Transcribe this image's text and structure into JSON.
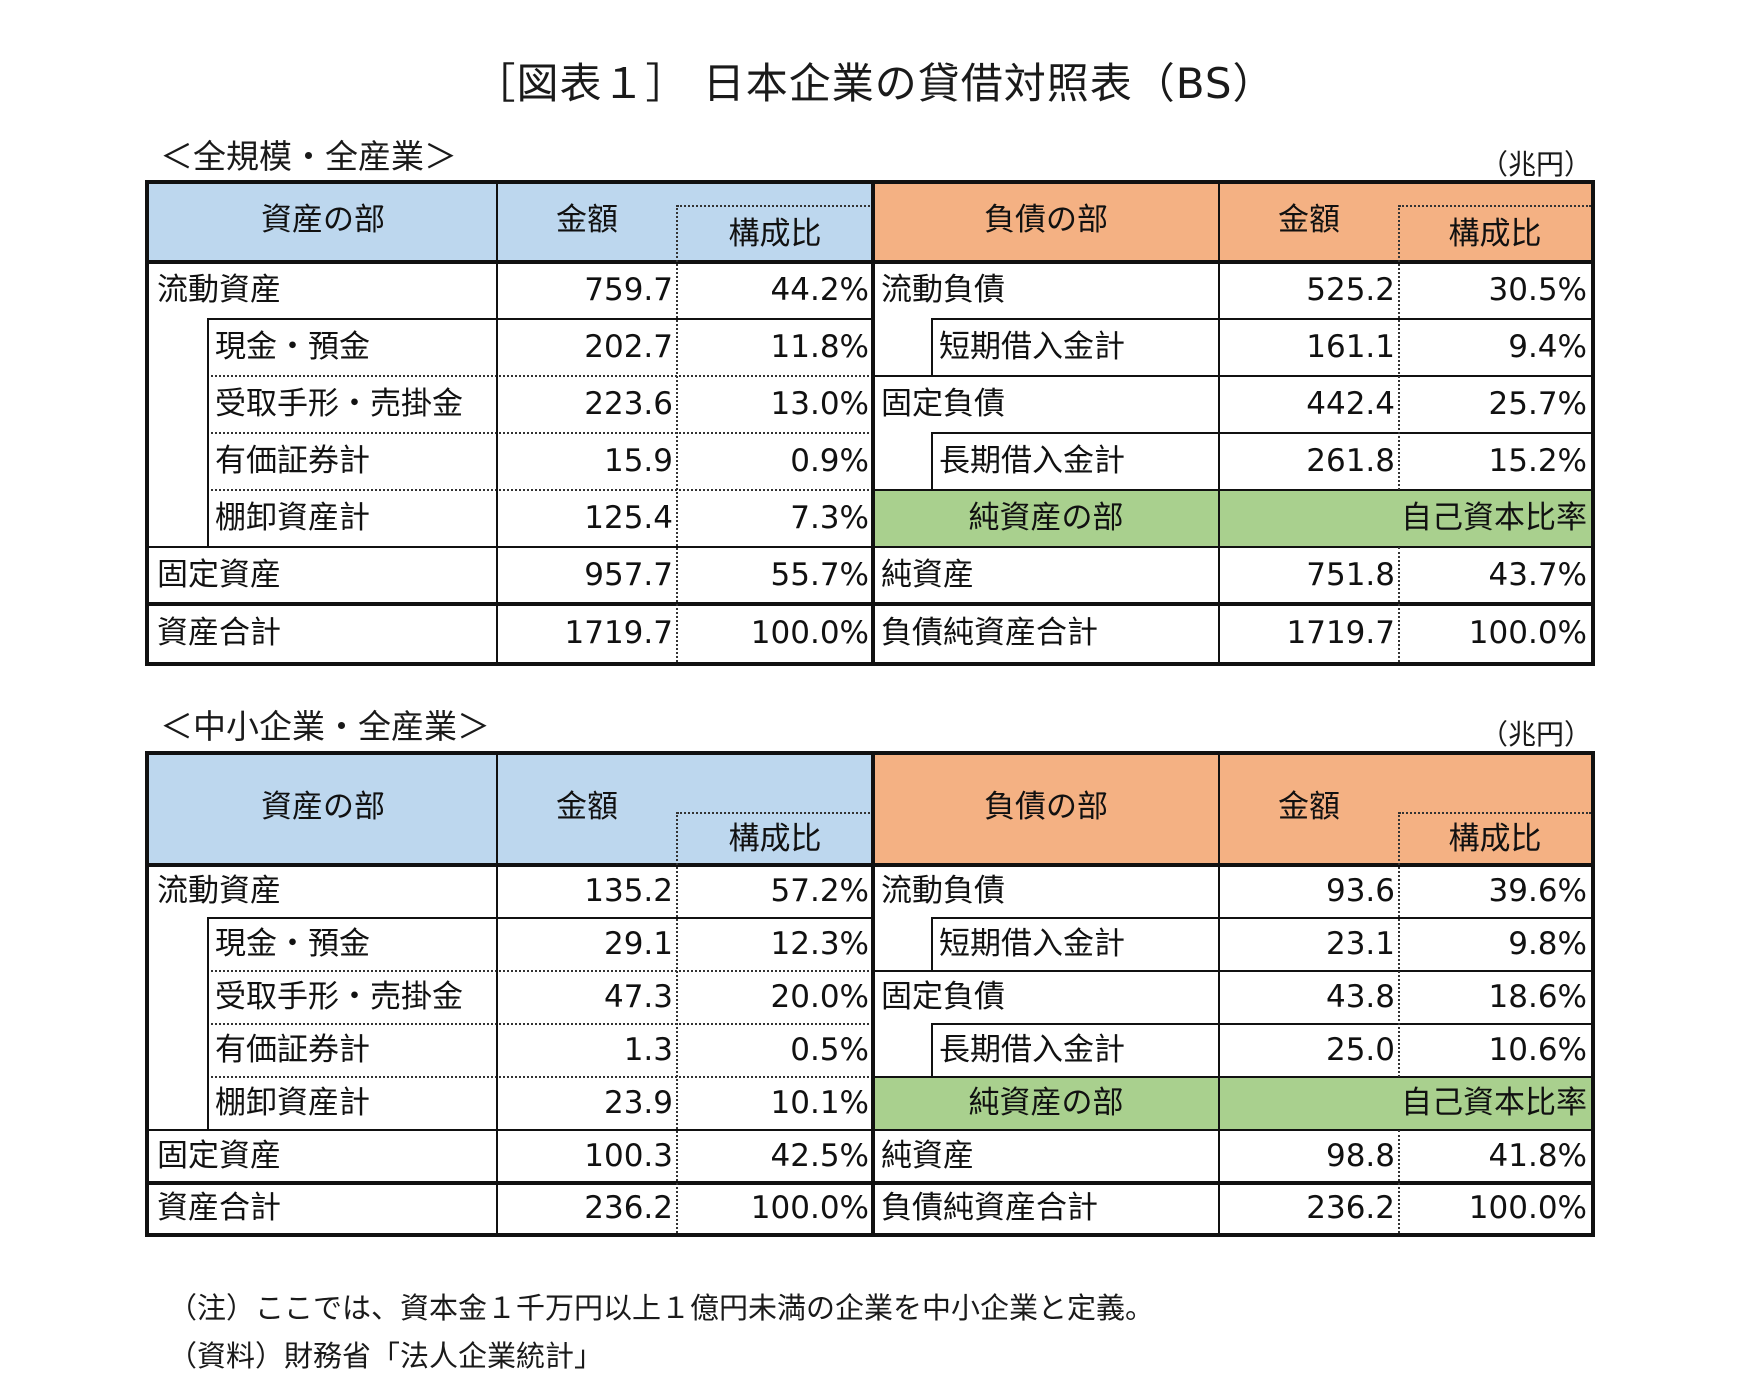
{
  "title": "［図表１］ 日本企業の貸借対照表（BS）",
  "unit": "（兆円）",
  "tables": [
    {
      "section_label": "＜全規模・全産業＞",
      "headers": {
        "assets": "資産の部",
        "amount": "金額",
        "ratio": "構成比",
        "liabilities": "負債の部",
        "net_assets": "純資産の部",
        "equity_ratio": "自己資本比率"
      },
      "assets": [
        {
          "label": "流動資産",
          "amount": "759.7",
          "ratio": "44.2%"
        },
        {
          "label": "現金・預金",
          "amount": "202.7",
          "ratio": "11.8%"
        },
        {
          "label": "受取手形・売掛金",
          "amount": "223.6",
          "ratio": "13.0%"
        },
        {
          "label": "有価証券計",
          "amount": "15.9",
          "ratio": "0.9%"
        },
        {
          "label": "棚卸資産計",
          "amount": "125.4",
          "ratio": "7.3%"
        },
        {
          "label": "固定資産",
          "amount": "957.7",
          "ratio": "55.7%"
        },
        {
          "label": "資産合計",
          "amount": "1719.7",
          "ratio": "100.0%"
        }
      ],
      "liabilities": [
        {
          "label": "流動負債",
          "amount": "525.2",
          "ratio": "30.5%"
        },
        {
          "label": "短期借入金計",
          "amount": "161.1",
          "ratio": "9.4%"
        },
        {
          "label": "固定負債",
          "amount": "442.4",
          "ratio": "25.7%"
        },
        {
          "label": "長期借入金計",
          "amount": "261.8",
          "ratio": "15.2%"
        },
        {
          "label": "純資産",
          "amount": "751.8",
          "ratio": "43.7%"
        },
        {
          "label": "負債純資産合計",
          "amount": "1719.7",
          "ratio": "100.0%"
        }
      ]
    },
    {
      "section_label": "＜中小企業・全産業＞",
      "headers": {
        "assets": "資産の部",
        "amount": "金額",
        "ratio": "構成比",
        "liabilities": "負債の部",
        "net_assets": "純資産の部",
        "equity_ratio": "自己資本比率"
      },
      "assets": [
        {
          "label": "流動資産",
          "amount": "135.2",
          "ratio": "57.2%"
        },
        {
          "label": "現金・預金",
          "amount": "29.1",
          "ratio": "12.3%"
        },
        {
          "label": "受取手形・売掛金",
          "amount": "47.3",
          "ratio": "20.0%"
        },
        {
          "label": "有価証券計",
          "amount": "1.3",
          "ratio": "0.5%"
        },
        {
          "label": "棚卸資産計",
          "amount": "23.9",
          "ratio": "10.1%"
        },
        {
          "label": "固定資産",
          "amount": "100.3",
          "ratio": "42.5%"
        },
        {
          "label": "資産合計",
          "amount": "236.2",
          "ratio": "100.0%"
        }
      ],
      "liabilities": [
        {
          "label": "流動負債",
          "amount": "93.6",
          "ratio": "39.6%"
        },
        {
          "label": "短期借入金計",
          "amount": "23.1",
          "ratio": "9.8%"
        },
        {
          "label": "固定負債",
          "amount": "43.8",
          "ratio": "18.6%"
        },
        {
          "label": "長期借入金計",
          "amount": "25.0",
          "ratio": "10.6%"
        },
        {
          "label": "純資産",
          "amount": "98.8",
          "ratio": "41.8%"
        },
        {
          "label": "負債純資産合計",
          "amount": "236.2",
          "ratio": "100.0%"
        }
      ]
    }
  ],
  "notes": [
    "（注）ここでは、資本金１千万円以上１億円未満の企業を中小企業と定義。",
    "（資料）財務省「法人企業統計」"
  ]
}
